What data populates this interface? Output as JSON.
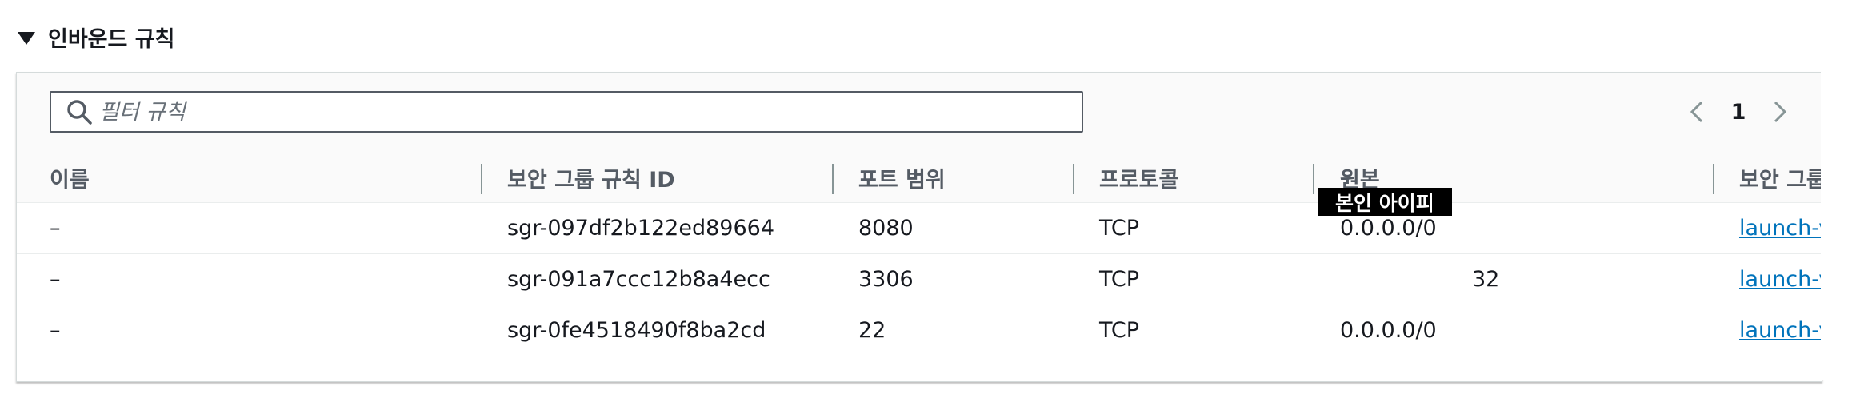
{
  "section": {
    "title": "인바운드 규칙"
  },
  "filter": {
    "placeholder": "필터 규칙",
    "value": ""
  },
  "pagination": {
    "current_page": "1"
  },
  "table": {
    "columns": [
      "이름",
      "보안 그룹 규칙 ID",
      "포트 범위",
      "프로토콜",
      "원본",
      "보안 그룹"
    ],
    "rows": [
      {
        "name": "–",
        "rule_id": "sgr-097df2b122ed89664",
        "port": "8080",
        "protocol": "TCP",
        "source": "0.0.0.0/0",
        "security_group": "launch-v"
      },
      {
        "name": "–",
        "rule_id": "sgr-091a7ccc12b8a4ecc",
        "port": "3306",
        "protocol": "TCP",
        "source": "32",
        "security_group": "launch-v"
      },
      {
        "name": "–",
        "rule_id": "sgr-0fe4518490f8ba2cd",
        "port": "22",
        "protocol": "TCP",
        "source": "0.0.0.0/0",
        "security_group": "launch-v"
      }
    ]
  },
  "tooltip": {
    "text": "본인 아이피"
  },
  "colors": {
    "link": "#0073bb",
    "text": "#16191f",
    "header_text": "#545b64",
    "tooltip_bg": "#000000"
  }
}
